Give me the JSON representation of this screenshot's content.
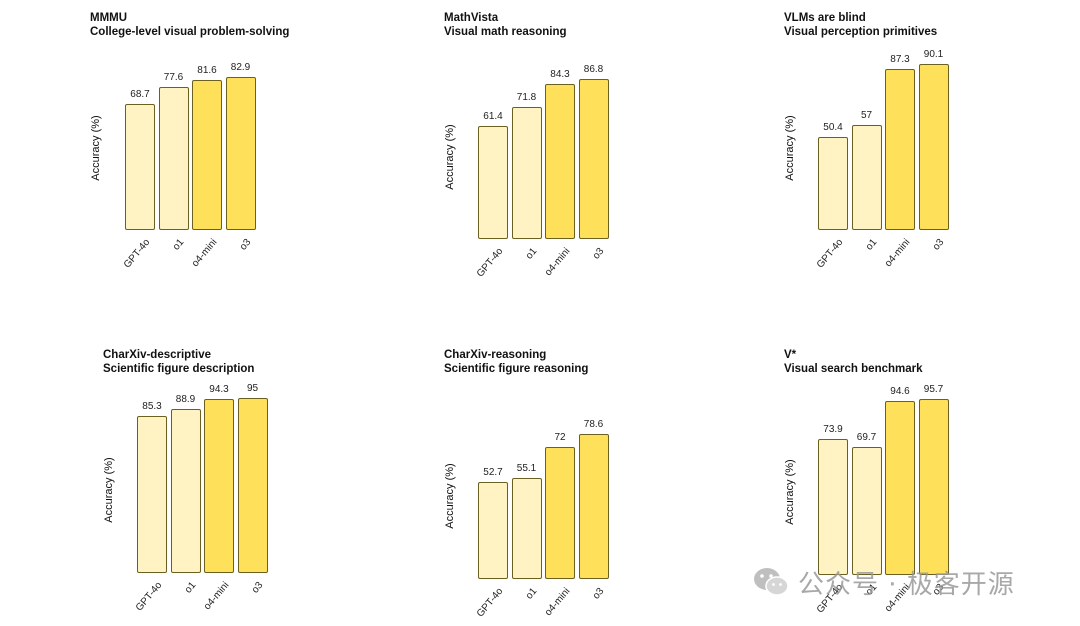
{
  "chart_data": [
    {
      "type": "bar",
      "title": "MMMU",
      "subtitle": "College-level visual problem-solving",
      "ylabel": "Accuracy (%)",
      "categories": [
        "GPT-4o",
        "o1",
        "o4-mini",
        "o3"
      ],
      "values": [
        68.7,
        77.6,
        81.6,
        82.9
      ],
      "bar_colors": [
        "#fff3c4",
        "#fff3c4",
        "#ffe05a",
        "#ffe05a"
      ]
    },
    {
      "type": "bar",
      "title": "MathVista",
      "subtitle": "Visual math reasoning",
      "ylabel": "Accuracy (%)",
      "categories": [
        "GPT-4o",
        "o1",
        "o4-mini",
        "o3"
      ],
      "values": [
        61.4,
        71.8,
        84.3,
        86.8
      ],
      "bar_colors": [
        "#fff3c4",
        "#fff3c4",
        "#ffe05a",
        "#ffe05a"
      ]
    },
    {
      "type": "bar",
      "title": "VLMs are blind",
      "subtitle": "Visual perception primitives",
      "ylabel": "Accuracy (%)",
      "categories": [
        "GPT-4o",
        "o1",
        "o4-mini",
        "o3"
      ],
      "values": [
        50.4,
        57,
        87.3,
        90.1
      ],
      "bar_colors": [
        "#fff3c4",
        "#fff3c4",
        "#ffe05a",
        "#ffe05a"
      ]
    },
    {
      "type": "bar",
      "title": "CharXiv-descriptive",
      "subtitle": "Scientific figure description",
      "ylabel": "Accuracy (%)",
      "categories": [
        "GPT-4o",
        "o1",
        "o4-mini",
        "o3"
      ],
      "values": [
        85.3,
        88.9,
        94.3,
        95
      ],
      "bar_colors": [
        "#fff3c4",
        "#fff3c4",
        "#ffe05a",
        "#ffe05a"
      ]
    },
    {
      "type": "bar",
      "title": "CharXiv-reasoning",
      "subtitle": "Scientific figure reasoning",
      "ylabel": "Accuracy (%)",
      "categories": [
        "GPT-4o",
        "o1",
        "o4-mini",
        "o3"
      ],
      "values": [
        52.7,
        55.1,
        72,
        78.6
      ],
      "bar_colors": [
        "#fff3c4",
        "#fff3c4",
        "#ffe05a",
        "#ffe05a"
      ]
    },
    {
      "type": "bar",
      "title": "V*",
      "subtitle": "Visual search benchmark",
      "ylabel": "Accuracy (%)",
      "categories": [
        "GPT-4o",
        "o1",
        "o4-mini",
        "o3"
      ],
      "values": [
        73.9,
        69.7,
        94.6,
        95.7
      ],
      "bar_colors": [
        "#fff3c4",
        "#fff3c4",
        "#ffe05a",
        "#ffe05a"
      ]
    }
  ],
  "watermark": {
    "text": "公众号 · 极客开源",
    "icon": "wechat-icon"
  }
}
